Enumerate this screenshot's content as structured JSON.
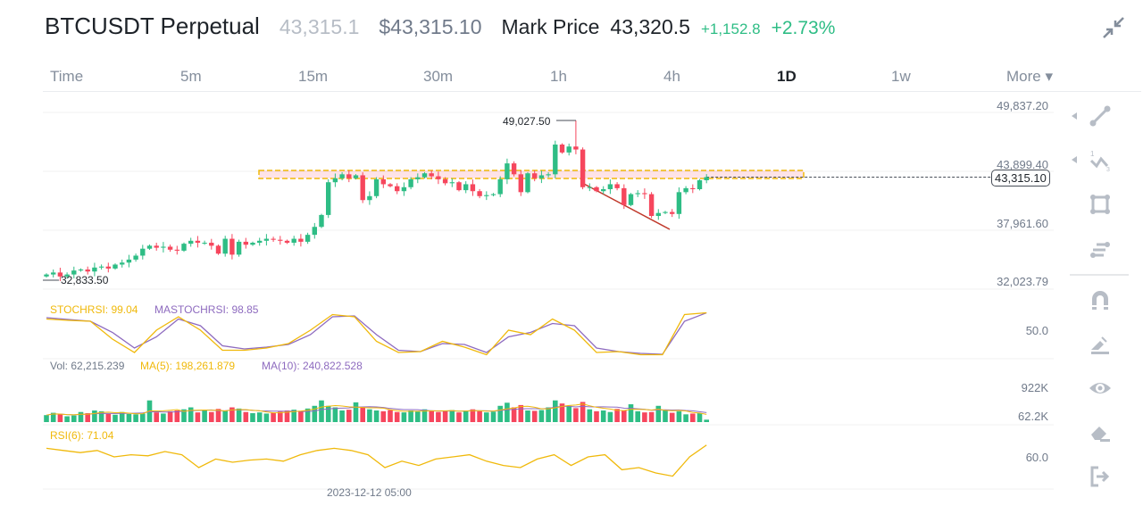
{
  "header": {
    "symbol": "BTCUSDT Perpetual",
    "last_price": "43,315.1",
    "usd_price": "$43,315.10",
    "mark_label": "Mark Price",
    "mark_price": "43,320.5",
    "change": "+1,152.8",
    "change_pct": "+2.73%",
    "collapse_icon": "collapse-arrows-icon"
  },
  "tabs": [
    {
      "label": "Time"
    },
    {
      "label": "5m"
    },
    {
      "label": "15m"
    },
    {
      "label": "30m"
    },
    {
      "label": "1h"
    },
    {
      "label": "4h"
    },
    {
      "label": "1D",
      "active": true
    },
    {
      "label": "1w"
    },
    {
      "label": "More ▾"
    }
  ],
  "price_axis": [
    "49,837.20",
    "43,899.40",
    "37,961.60",
    "32,023.79"
  ],
  "current_price_label": "43,315.10",
  "high_label": "49,027.50",
  "low_label": "32,833.50",
  "stoch": {
    "legend_k": "STOCHRSI: 99.04",
    "legend_d": "MASTOCHRSI: 98.85",
    "axis": "50.0"
  },
  "volume": {
    "legend_vol": "Vol: 62,215.239",
    "legend_ma5": "MA(5): 198,261.879",
    "legend_ma10": "MA(10): 240,822.528",
    "axis_top": "922K",
    "axis_last": "62.2K"
  },
  "rsi": {
    "legend": "RSI(6): 71.04",
    "axis": "60.0"
  },
  "time_label": "2023-12-12 05:00",
  "colors": {
    "up": "#2EBD85",
    "down": "#F6465D",
    "stoch_k": "#F0B90B",
    "stoch_d": "#8E6BBF",
    "zone": "#F0B90B",
    "trendline": "#C0392B"
  },
  "toolbar": [
    "trend-line-icon",
    "fib-wave-icon",
    "rectangle-icon",
    "indicator-settings-icon",
    "magnet-icon",
    "pencil-icon",
    "eye-icon",
    "eraser-icon",
    "exit-icon"
  ],
  "chart_data": {
    "type": "candlestick",
    "interval": "1D",
    "ylim": [
      32023.79,
      49837.2
    ],
    "open_first": 33300,
    "close": [
      33500,
      33700,
      33300,
      33500,
      33900,
      34000,
      33800,
      34200,
      34300,
      34100,
      34500,
      34700,
      35000,
      35400,
      36100,
      36400,
      36200,
      36300,
      36000,
      35900,
      36600,
      36900,
      36700,
      36700,
      36400,
      35600,
      37100,
      35500,
      36800,
      36500,
      36700,
      36900,
      37100,
      37000,
      36900,
      36700,
      37100,
      36800,
      37500,
      38300,
      39500,
      42800,
      43200,
      43600,
      43200,
      43500,
      41000,
      41400,
      43100,
      42600,
      42400,
      41900,
      42300,
      43100,
      43300,
      43700,
      43400,
      43100,
      42700,
      42800,
      42000,
      42600,
      41900,
      41400,
      41500,
      41600,
      43100,
      44700,
      43600,
      41800,
      43700,
      43200,
      43500,
      43600,
      46600,
      45800,
      46400,
      46100,
      42300,
      42300,
      41900,
      42100,
      42600,
      42200,
      40500,
      41600,
      41700,
      41600,
      39400,
      39700,
      39800,
      39600,
      41800,
      42200,
      42100,
      43000,
      43315.1
    ],
    "high_max": 49027.5,
    "low_min": 32833.5,
    "volume_k": [
      180,
      240,
      200,
      150,
      170,
      260,
      230,
      300,
      280,
      210,
      190,
      260,
      210,
      200,
      220,
      560,
      250,
      220,
      280,
      300,
      330,
      380,
      250,
      300,
      260,
      340,
      290,
      380,
      350,
      260,
      230,
      250,
      220,
      240,
      270,
      300,
      320,
      290,
      350,
      420,
      560,
      420,
      380,
      300,
      320,
      510,
      380,
      330,
      300,
      280,
      310,
      260,
      250,
      300,
      280,
      330,
      290,
      260,
      300,
      310,
      250,
      300,
      330,
      280,
      250,
      270,
      420,
      500,
      380,
      440,
      300,
      290,
      310,
      380,
      560,
      480,
      420,
      360,
      520,
      330,
      280,
      300,
      260,
      340,
      300,
      460,
      280,
      250,
      260,
      420,
      300,
      240,
      280,
      200,
      220,
      230,
      62.2
    ],
    "stoch_k": [
      85,
      82,
      80,
      40,
      10,
      60,
      90,
      60,
      15,
      15,
      20,
      30,
      60,
      95,
      90,
      35,
      10,
      12,
      35,
      22,
      5,
      60,
      50,
      85,
      60,
      10,
      12,
      5,
      5,
      95,
      99.04
    ],
    "stoch_d": [
      88,
      84,
      80,
      55,
      20,
      45,
      85,
      70,
      25,
      18,
      22,
      28,
      50,
      90,
      92,
      50,
      15,
      12,
      30,
      28,
      10,
      45,
      55,
      75,
      70,
      20,
      12,
      8,
      6,
      80,
      98.85
    ],
    "rsi": [
      68,
      66,
      64,
      66,
      60,
      62,
      61,
      65,
      62,
      50,
      58,
      55,
      57,
      58,
      56,
      62,
      66,
      68,
      66,
      62,
      50,
      56,
      52,
      58,
      60,
      62,
      56,
      52,
      50,
      58,
      62,
      52,
      60,
      62,
      48,
      50,
      45,
      42,
      60,
      71.04
    ]
  }
}
